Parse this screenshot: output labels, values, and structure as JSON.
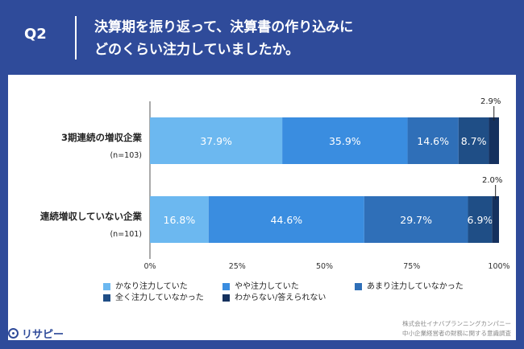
{
  "header": {
    "question": "Q2",
    "title_line1": "決算期を振り返って、決算書の作り込みに",
    "title_line2": "どのくらい注力していましたか。"
  },
  "chart_data": {
    "type": "bar",
    "orientation": "horizontal-stacked-100",
    "categories": [
      {
        "label": "3期連続の増収企業",
        "n": "(n=103)"
      },
      {
        "label": "連続増収していない企業",
        "n": "(n=101)"
      }
    ],
    "series": [
      {
        "name": "かなり注力していた",
        "color": "#6cb8f0",
        "values": [
          37.9,
          16.8
        ]
      },
      {
        "name": "やや注力していた",
        "color": "#3a8de0",
        "values": [
          35.9,
          44.6
        ]
      },
      {
        "name": "あまり注力していなかった",
        "color": "#2f6fb8",
        "values": [
          14.6,
          29.7
        ]
      },
      {
        "name": "全く注力していなかった",
        "color": "#1f4e86",
        "values": [
          8.7,
          6.9
        ]
      },
      {
        "name": "わからない/答えられない",
        "color": "#15315e",
        "values": [
          2.9,
          2.0
        ]
      }
    ],
    "value_labels": [
      [
        "37.9%",
        "35.9%",
        "14.6%",
        "8.7%",
        "2.9%"
      ],
      [
        "16.8%",
        "44.6%",
        "29.7%",
        "6.9%",
        "2.0%"
      ]
    ],
    "xticks": [
      "0%",
      "25%",
      "50%",
      "75%",
      "100%"
    ],
    "xlim": [
      0,
      100
    ],
    "grid": false,
    "legend_position": "bottom"
  },
  "footer": {
    "logo_text": "リサピー",
    "source_line1": "株式会社イナバプランニングカンパニー",
    "source_line2": "中小企業経営者の財務に関する意識調査"
  }
}
